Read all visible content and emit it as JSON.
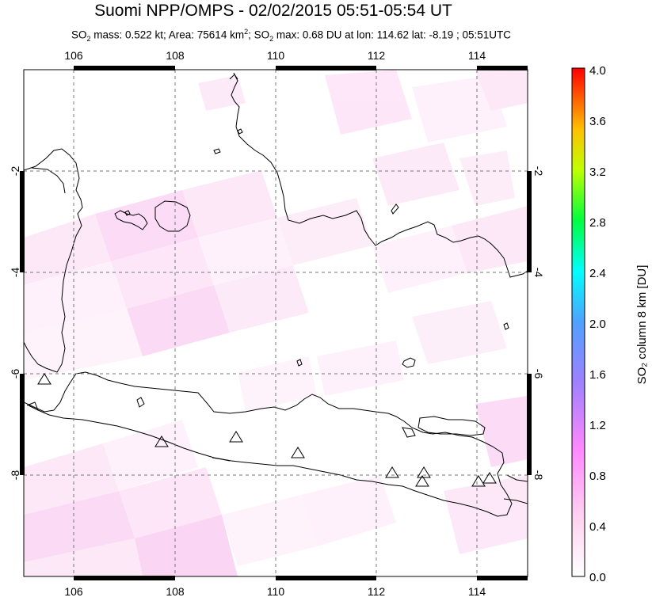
{
  "header": {
    "title": "Suomi NPP/OMPS - 02/02/2015 05:51-05:54 UT",
    "sub_so2_1": "SO",
    "sub_mass": " mass: 0.522 kt; Area: 75614 km",
    "sub_area_sup": "2",
    "sub_so2_2": "; SO",
    "sub_max": " max: 0.68 DU at lon: 114.62 lat: -8.19 ; 05:51UTC",
    "sub_2": "2"
  },
  "map": {
    "lon_ticks": [
      "106",
      "108",
      "110",
      "112",
      "114"
    ],
    "lat_ticks": [
      "-2",
      "-4",
      "-6",
      "-8"
    ]
  },
  "colorbar": {
    "label": "SO₂ column 8 km [DU]",
    "ticks": [
      "4.0",
      "3.6",
      "3.2",
      "2.8",
      "2.4",
      "2.0",
      "1.6",
      "1.2",
      "0.8",
      "0.4",
      "0.0"
    ],
    "colors": [
      "#ff0000",
      "#ff8000",
      "#ffff00",
      "#00ff00",
      "#00ffff",
      "#8080ff",
      "#ff80ff",
      "#ffffff"
    ]
  }
}
